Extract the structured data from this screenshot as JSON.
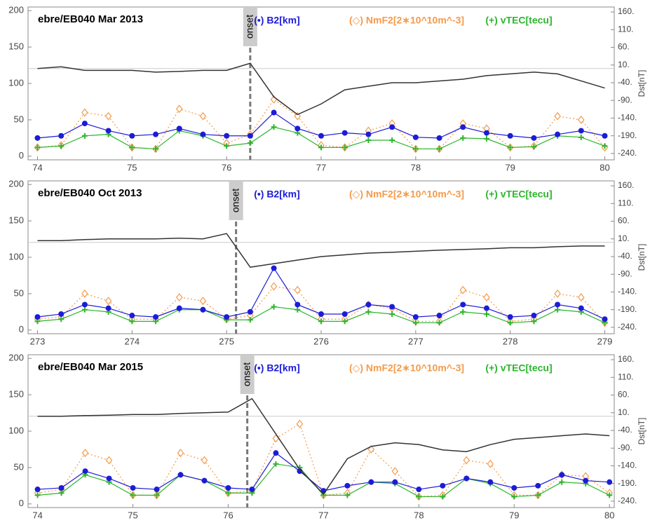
{
  "chart_data": [
    {
      "type": "line",
      "title": "ebre/EB040  Mar 2013",
      "y2label": "Dst[nT]",
      "onset": {
        "x": 76.25,
        "label": "onset"
      },
      "y2_reference": 0,
      "xlim": [
        73.9,
        80.1
      ],
      "xticks": [
        74,
        75,
        76,
        77,
        78,
        79,
        80
      ],
      "ylim": [
        -5,
        205
      ],
      "yticks": [
        0,
        50,
        100,
        150,
        200
      ],
      "y2lim": [
        -258,
        174
      ],
      "y2ticks": [
        {
          "value": 160,
          "label": "160."
        },
        {
          "value": 110,
          "label": "110."
        },
        {
          "value": 60,
          "label": "60."
        },
        {
          "value": 10,
          "label": "10."
        },
        {
          "value": -40,
          "label": "-40."
        },
        {
          "value": -90,
          "label": "-90."
        },
        {
          "value": -140,
          "label": "-140."
        },
        {
          "value": -190,
          "label": "-190."
        },
        {
          "value": -240,
          "label": "-240."
        }
      ],
      "x": [
        74,
        74.25,
        74.5,
        74.75,
        75,
        75.25,
        75.5,
        75.75,
        76,
        76.25,
        76.5,
        76.75,
        77,
        77.25,
        77.5,
        77.75,
        78,
        78.25,
        78.5,
        78.75,
        79,
        79.25,
        79.5,
        79.75,
        80
      ],
      "series": [
        {
          "name": "(◇) NmF2[2∗10^10m^-3]",
          "color": "#f59a4a",
          "marker": "diamond",
          "line": "dotted",
          "values": [
            12,
            15,
            60,
            55,
            12,
            10,
            65,
            55,
            18,
            30,
            78,
            55,
            15,
            12,
            35,
            45,
            10,
            10,
            45,
            38,
            12,
            14,
            55,
            50,
            12
          ]
        },
        {
          "name": "(+) vTEC[tecu]",
          "color": "#2db52d",
          "marker": "plus",
          "line": "solid",
          "values": [
            12,
            14,
            28,
            30,
            12,
            10,
            35,
            28,
            14,
            18,
            40,
            32,
            12,
            12,
            22,
            22,
            10,
            10,
            25,
            24,
            12,
            13,
            28,
            26,
            14
          ]
        },
        {
          "name": "(•) B2[km]",
          "color": "#1c1cd8",
          "marker": "circle",
          "line": "solid",
          "values": [
            25,
            28,
            45,
            35,
            28,
            30,
            38,
            30,
            28,
            28,
            60,
            38,
            28,
            32,
            30,
            40,
            26,
            25,
            40,
            32,
            28,
            25,
            30,
            35,
            28
          ]
        },
        {
          "color": "#333333",
          "marker": "none",
          "line": "solid",
          "axis": "y2",
          "values": [
            0,
            5,
            -5,
            -5,
            -5,
            -10,
            -8,
            -5,
            -5,
            15,
            -80,
            -130,
            -100,
            -60,
            -50,
            -40,
            -40,
            -35,
            -30,
            -20,
            -15,
            -10,
            -15,
            -35,
            -55
          ]
        }
      ]
    },
    {
      "type": "line",
      "title": "ebre/EB040  Oct 2013",
      "y2label": "Dst[nT]",
      "onset": {
        "x": 275.1,
        "label": "onset"
      },
      "y2_reference": 0,
      "xlim": [
        272.9,
        279.1
      ],
      "xticks": [
        273,
        274,
        275,
        276,
        277,
        278,
        279
      ],
      "ylim": [
        -5,
        205
      ],
      "yticks": [
        0,
        50,
        100,
        150,
        200
      ],
      "y2lim": [
        -258,
        174
      ],
      "y2ticks": [
        {
          "value": 160,
          "label": "160."
        },
        {
          "value": 110,
          "label": "110."
        },
        {
          "value": 60,
          "label": "60."
        },
        {
          "value": 10,
          "label": "10."
        },
        {
          "value": -40,
          "label": "-40."
        },
        {
          "value": -90,
          "label": "-90."
        },
        {
          "value": -140,
          "label": "-140."
        },
        {
          "value": -190,
          "label": "-190."
        },
        {
          "value": -240,
          "label": "-240."
        }
      ],
      "x": [
        273,
        273.25,
        273.5,
        273.75,
        274,
        274.25,
        274.5,
        274.75,
        275,
        275.25,
        275.5,
        275.75,
        276,
        276.25,
        276.5,
        276.75,
        277,
        277.25,
        277.5,
        277.75,
        278,
        278.25,
        278.5,
        278.75,
        279
      ],
      "series": [
        {
          "name": "(◇) NmF2[2∗10^10m^-3]",
          "color": "#f59a4a",
          "marker": "diamond",
          "line": "dotted",
          "values": [
            15,
            18,
            50,
            40,
            15,
            15,
            45,
            40,
            15,
            20,
            60,
            55,
            15,
            15,
            35,
            30,
            12,
            12,
            55,
            45,
            12,
            15,
            50,
            45,
            10
          ]
        },
        {
          "name": "(+) vTEC[tecu]",
          "color": "#2db52d",
          "marker": "plus",
          "line": "solid",
          "values": [
            12,
            15,
            28,
            25,
            12,
            12,
            28,
            28,
            14,
            14,
            32,
            28,
            12,
            12,
            25,
            22,
            10,
            10,
            25,
            22,
            10,
            12,
            28,
            25,
            10
          ]
        },
        {
          "name": "(•) B2[km]",
          "color": "#1c1cd8",
          "marker": "circle",
          "line": "solid",
          "values": [
            18,
            22,
            35,
            30,
            20,
            18,
            30,
            28,
            18,
            25,
            85,
            35,
            22,
            22,
            35,
            32,
            18,
            20,
            35,
            30,
            18,
            20,
            35,
            30,
            15
          ]
        },
        {
          "color": "#333333",
          "marker": "none",
          "line": "solid",
          "axis": "y2",
          "values": [
            5,
            5,
            8,
            10,
            10,
            10,
            12,
            10,
            25,
            -70,
            -60,
            -50,
            -40,
            -35,
            -30,
            -28,
            -25,
            -22,
            -20,
            -18,
            -15,
            -15,
            -12,
            -10,
            -10
          ]
        }
      ]
    },
    {
      "type": "line",
      "title": "ebre/EB040  Mar 2015",
      "y2label": "Dst[nT]",
      "onset": {
        "x": 76.2,
        "label": "onset"
      },
      "y2_reference": 0,
      "xlim": [
        73.9,
        80.05
      ],
      "xticks": [
        74,
        75,
        76,
        77,
        78,
        79,
        80
      ],
      "ylim": [
        -5,
        205
      ],
      "yticks": [
        0,
        50,
        100,
        150,
        200
      ],
      "y2lim": [
        -258,
        174
      ],
      "y2ticks": [
        {
          "value": 160,
          "label": "160."
        },
        {
          "value": 110,
          "label": "110."
        },
        {
          "value": 60,
          "label": "60."
        },
        {
          "value": 10,
          "label": "10."
        },
        {
          "value": -40,
          "label": "-40."
        },
        {
          "value": -90,
          "label": "-90."
        },
        {
          "value": -140,
          "label": "-140."
        },
        {
          "value": -190,
          "label": "-190."
        },
        {
          "value": -240,
          "label": "-240."
        }
      ],
      "x": [
        74,
        74.25,
        74.5,
        74.75,
        75,
        75.25,
        75.5,
        75.75,
        76,
        76.25,
        76.5,
        76.75,
        77,
        77.25,
        77.5,
        77.75,
        78,
        78.25,
        78.5,
        78.75,
        79,
        79.25,
        79.5,
        79.75,
        80
      ],
      "series": [
        {
          "name": "(◇) NmF2[2∗10^10m^-3]",
          "color": "#f59a4a",
          "marker": "diamond",
          "line": "dotted",
          "values": [
            15,
            20,
            70,
            60,
            12,
            12,
            70,
            60,
            15,
            18,
            90,
            110,
            12,
            15,
            75,
            45,
            10,
            12,
            60,
            55,
            12,
            12,
            40,
            38,
            15
          ]
        },
        {
          "name": "(+) vTEC[tecu]",
          "color": "#2db52d",
          "marker": "plus",
          "line": "solid",
          "values": [
            12,
            15,
            40,
            30,
            12,
            12,
            40,
            32,
            15,
            15,
            55,
            50,
            12,
            12,
            30,
            28,
            10,
            10,
            35,
            28,
            10,
            12,
            30,
            28,
            12
          ]
        },
        {
          "name": "(•) B2[km]",
          "color": "#1c1cd8",
          "marker": "circle",
          "line": "solid",
          "values": [
            20,
            22,
            45,
            35,
            22,
            20,
            40,
            32,
            22,
            20,
            70,
            45,
            18,
            25,
            30,
            30,
            20,
            25,
            35,
            30,
            22,
            25,
            40,
            32,
            30
          ]
        },
        {
          "color": "#333333",
          "marker": "none",
          "line": "solid",
          "axis": "y2",
          "values": [
            0,
            0,
            2,
            3,
            5,
            5,
            8,
            10,
            12,
            50,
            -50,
            -150,
            -220,
            -120,
            -85,
            -75,
            -80,
            -95,
            -100,
            -80,
            -65,
            -60,
            -55,
            -50,
            -55
          ]
        }
      ]
    }
  ]
}
